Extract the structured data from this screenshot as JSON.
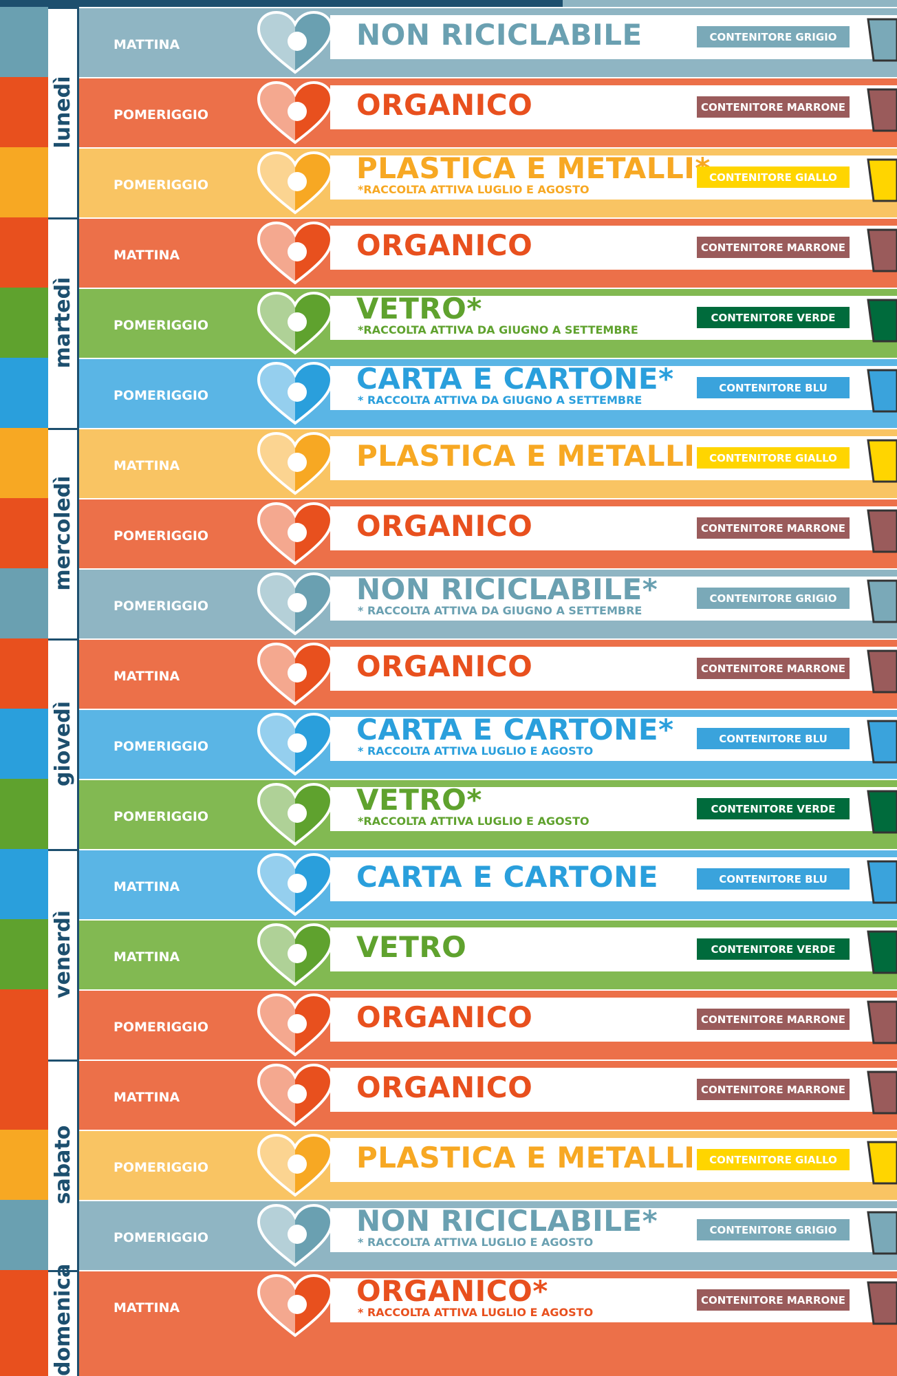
{
  "days": [
    {
      "day": "lunedì",
      "rows": [
        {
          "time": "MATTINA",
          "category": "NON RICICLABILE",
          "container": "CONTENITORE GRIGIO",
          "color": "#8fb5c3",
          "accent": "#6aa0b1",
          "box": "#7aa9b8"
        },
        {
          "time": "POMERIGGIO",
          "category": "ORGANICO",
          "container": "CONTENITORE MARRONE",
          "color": "#ec7049",
          "accent": "#e8501e",
          "box": "#9a5b5b"
        },
        {
          "time": "POMERIGGIO",
          "category": "PLASTICA E METALLI*",
          "note": "*RACCOLTA ATTIVA LUGLIO E AGOSTO",
          "container": "CONTENITORE GIALLO",
          "color": "#f9c463",
          "accent": "#f7a823",
          "box": "#ffd500"
        }
      ]
    },
    {
      "day": "martedì",
      "rows": [
        {
          "time": "MATTINA",
          "category": "ORGANICO",
          "container": "CONTENITORE MARRONE",
          "color": "#ec7049",
          "accent": "#e8501e",
          "box": "#9a5b5b"
        },
        {
          "time": "POMERIGGIO",
          "category": "VETRO*",
          "note": "*RACCOLTA ATTIVA DA GIUGNO A SETTEMBRE",
          "container": "CONTENITORE VERDE",
          "color": "#82b952",
          "accent": "#5fa22e",
          "box": "#006b3c"
        },
        {
          "time": "POMERIGGIO",
          "category": "CARTA E CARTONE*",
          "note": "* RACCOLTA ATTIVA DA GIUGNO A SETTEMBRE",
          "container": "CONTENITORE BLU",
          "color": "#5ab5e5",
          "accent": "#2a9fdc",
          "box": "#3aa3dc"
        }
      ]
    },
    {
      "day": "mercoledì",
      "rows": [
        {
          "time": "MATTINA",
          "category": "PLASTICA E METALLI",
          "container": "CONTENITORE GIALLO",
          "color": "#f9c463",
          "accent": "#f7a823",
          "box": "#ffd500"
        },
        {
          "time": "POMERIGGIO",
          "category": "ORGANICO",
          "container": "CONTENITORE MARRONE",
          "color": "#ec7049",
          "accent": "#e8501e",
          "box": "#9a5b5b"
        },
        {
          "time": "POMERIGGIO",
          "category": "NON RICICLABILE*",
          "note": "* RACCOLTA ATTIVA DA GIUGNO A SETTEMBRE",
          "container": "CONTENITORE GRIGIO",
          "color": "#8fb5c3",
          "accent": "#6aa0b1",
          "box": "#7aa9b8"
        }
      ]
    },
    {
      "day": "giovedì",
      "rows": [
        {
          "time": "MATTINA",
          "category": "ORGANICO",
          "container": "CONTENITORE MARRONE",
          "color": "#ec7049",
          "accent": "#e8501e",
          "box": "#9a5b5b"
        },
        {
          "time": "POMERIGGIO",
          "category": "CARTA E CARTONE*",
          "note": "* RACCOLTA ATTIVA LUGLIO E AGOSTO",
          "container": "CONTENITORE BLU",
          "color": "#5ab5e5",
          "accent": "#2a9fdc",
          "box": "#3aa3dc"
        },
        {
          "time": "POMERIGGIO",
          "category": "VETRO*",
          "note": "*RACCOLTA ATTIVA LUGLIO E AGOSTO",
          "container": "CONTENITORE VERDE",
          "color": "#82b952",
          "accent": "#5fa22e",
          "box": "#006b3c"
        }
      ]
    },
    {
      "day": "venerdì",
      "rows": [
        {
          "time": "MATTINA",
          "category": "CARTA E CARTONE",
          "container": "CONTENITORE BLU",
          "color": "#5ab5e5",
          "accent": "#2a9fdc",
          "box": "#3aa3dc"
        },
        {
          "time": "MATTINA",
          "category": "VETRO",
          "container": "CONTENITORE VERDE",
          "color": "#82b952",
          "accent": "#5fa22e",
          "box": "#006b3c"
        },
        {
          "time": "POMERIGGIO",
          "category": "ORGANICO",
          "container": "CONTENITORE MARRONE",
          "color": "#ec7049",
          "accent": "#e8501e",
          "box": "#9a5b5b"
        }
      ]
    },
    {
      "day": "sabato",
      "rows": [
        {
          "time": "MATTINA",
          "category": "ORGANICO",
          "container": "CONTENITORE MARRONE",
          "color": "#ec7049",
          "accent": "#e8501e",
          "box": "#9a5b5b"
        },
        {
          "time": "POMERIGGIO",
          "category": "PLASTICA E METALLI",
          "container": "CONTENITORE GIALLO",
          "color": "#f9c463",
          "accent": "#f7a823",
          "box": "#ffd500"
        },
        {
          "time": "POMERIGGIO",
          "category": "NON RICICLABILE*",
          "note": "* RACCOLTA ATTIVA  LUGLIO E  AGOSTO",
          "container": "CONTENITORE GRIGIO",
          "color": "#8fb5c3",
          "accent": "#6aa0b1",
          "box": "#7aa9b8"
        }
      ]
    },
    {
      "day": "domenica",
      "rows": [
        {
          "time": "MATTINA",
          "category": "ORGANICO*",
          "note": "* RACCOLTA ATTIVA LUGLIO E AGOSTO",
          "container": "CONTENITORE MARRONE",
          "color": "#ec7049",
          "accent": "#e8501e",
          "box": "#9a5b5b"
        }
      ]
    }
  ]
}
